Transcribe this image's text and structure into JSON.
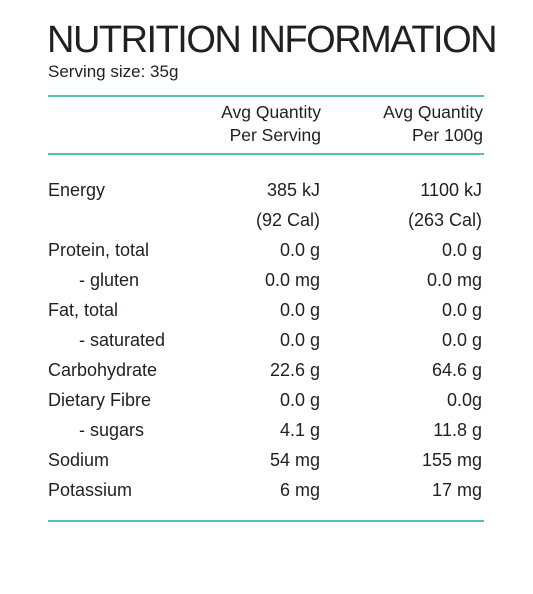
{
  "title": "NUTRITION INFORMATION",
  "serving": "Serving size: 35g",
  "colors": {
    "rule": "#5cbfae",
    "text": "#231f20"
  },
  "header": {
    "col1_line1": "Avg Quantity",
    "col1_line2": "Per Serving",
    "col2_line1": "Avg Quantity",
    "col2_line2": "Per 100g"
  },
  "rows": [
    {
      "name": "Energy",
      "per_serving": "385 kJ",
      "per_100g": "1100 kJ"
    },
    {
      "name": "",
      "per_serving": "(92 Cal)",
      "per_100g": "(263 Cal)"
    },
    {
      "name": "Protein, total",
      "per_serving": "0.0 g",
      "per_100g": "0.0 g"
    },
    {
      "name": "- gluten",
      "per_serving": "0.0 mg",
      "per_100g": "0.0 mg"
    },
    {
      "name": "Fat, total",
      "per_serving": "0.0 g",
      "per_100g": "0.0 g"
    },
    {
      "name": "- saturated",
      "per_serving": "0.0 g",
      "per_100g": "0.0 g"
    },
    {
      "name": "Carbohydrate",
      "per_serving": "22.6 g",
      "per_100g": "64.6 g"
    },
    {
      "name": "Dietary Fibre",
      "per_serving": "0.0 g",
      "per_100g": "0.0g"
    },
    {
      "name": "- sugars",
      "per_serving": "4.1 g",
      "per_100g": "11.8 g"
    },
    {
      "name": "Sodium",
      "per_serving": "54 mg",
      "per_100g": "155 mg"
    },
    {
      "name": "Potassium",
      "per_serving": "6 mg",
      "per_100g": "17 mg"
    }
  ]
}
